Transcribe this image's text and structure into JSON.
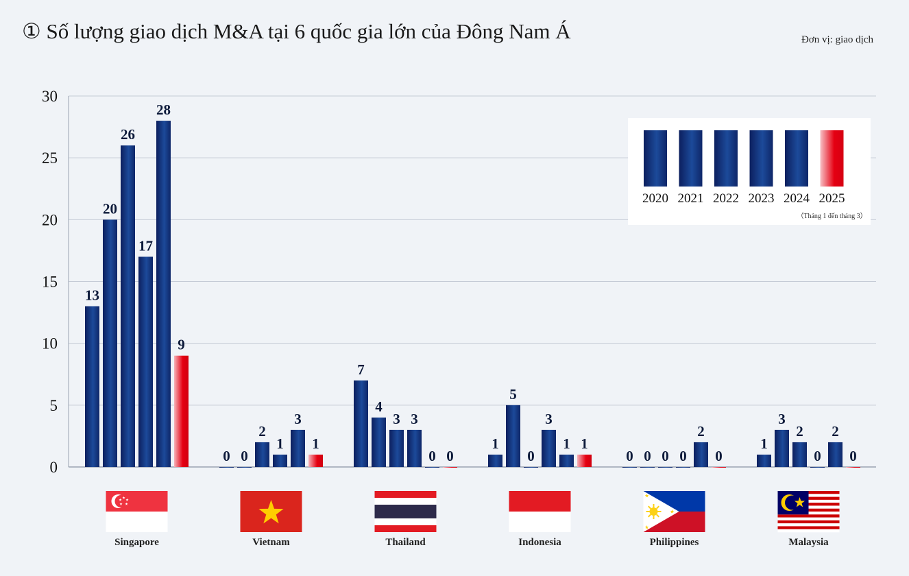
{
  "header": {
    "title": "① Số lượng giao dịch M&A tại 6 quốc gia lớn của Đông Nam Á",
    "unit": "Đơn vị: giao dịch"
  },
  "chart_data": {
    "type": "bar",
    "categories": [
      "Singapore",
      "Vietnam",
      "Thailand",
      "Indonesia",
      "Philippines",
      "Malaysia"
    ],
    "series": [
      {
        "name": "2020",
        "values": [
          13,
          0,
          7,
          1,
          0,
          1
        ]
      },
      {
        "name": "2021",
        "values": [
          20,
          0,
          4,
          5,
          0,
          3
        ]
      },
      {
        "name": "2022",
        "values": [
          26,
          2,
          3,
          0,
          0,
          2
        ]
      },
      {
        "name": "2023",
        "values": [
          17,
          1,
          3,
          3,
          0,
          0
        ]
      },
      {
        "name": "2024",
        "values": [
          28,
          3,
          0,
          1,
          2,
          2
        ]
      },
      {
        "name": "2025",
        "note": "（Tháng 1 đến tháng 3）",
        "values": [
          9,
          1,
          0,
          1,
          0,
          0
        ]
      }
    ],
    "yticks": [
      0,
      5,
      10,
      15,
      20,
      25,
      30
    ],
    "ylim": [
      0,
      30
    ],
    "grid": true,
    "legend_position": "top-right",
    "colors": {
      "regular_top": "#0c1f5e",
      "regular_mid": "#1c4a9a",
      "highlight_top": "#e50012",
      "highlight_bottom": "#f9c8cc",
      "grid": "#c5cbd6"
    },
    "flags": [
      "singapore-flag",
      "vietnam-flag",
      "thailand-flag",
      "indonesia-flag",
      "philippines-flag",
      "malaysia-flag"
    ]
  }
}
